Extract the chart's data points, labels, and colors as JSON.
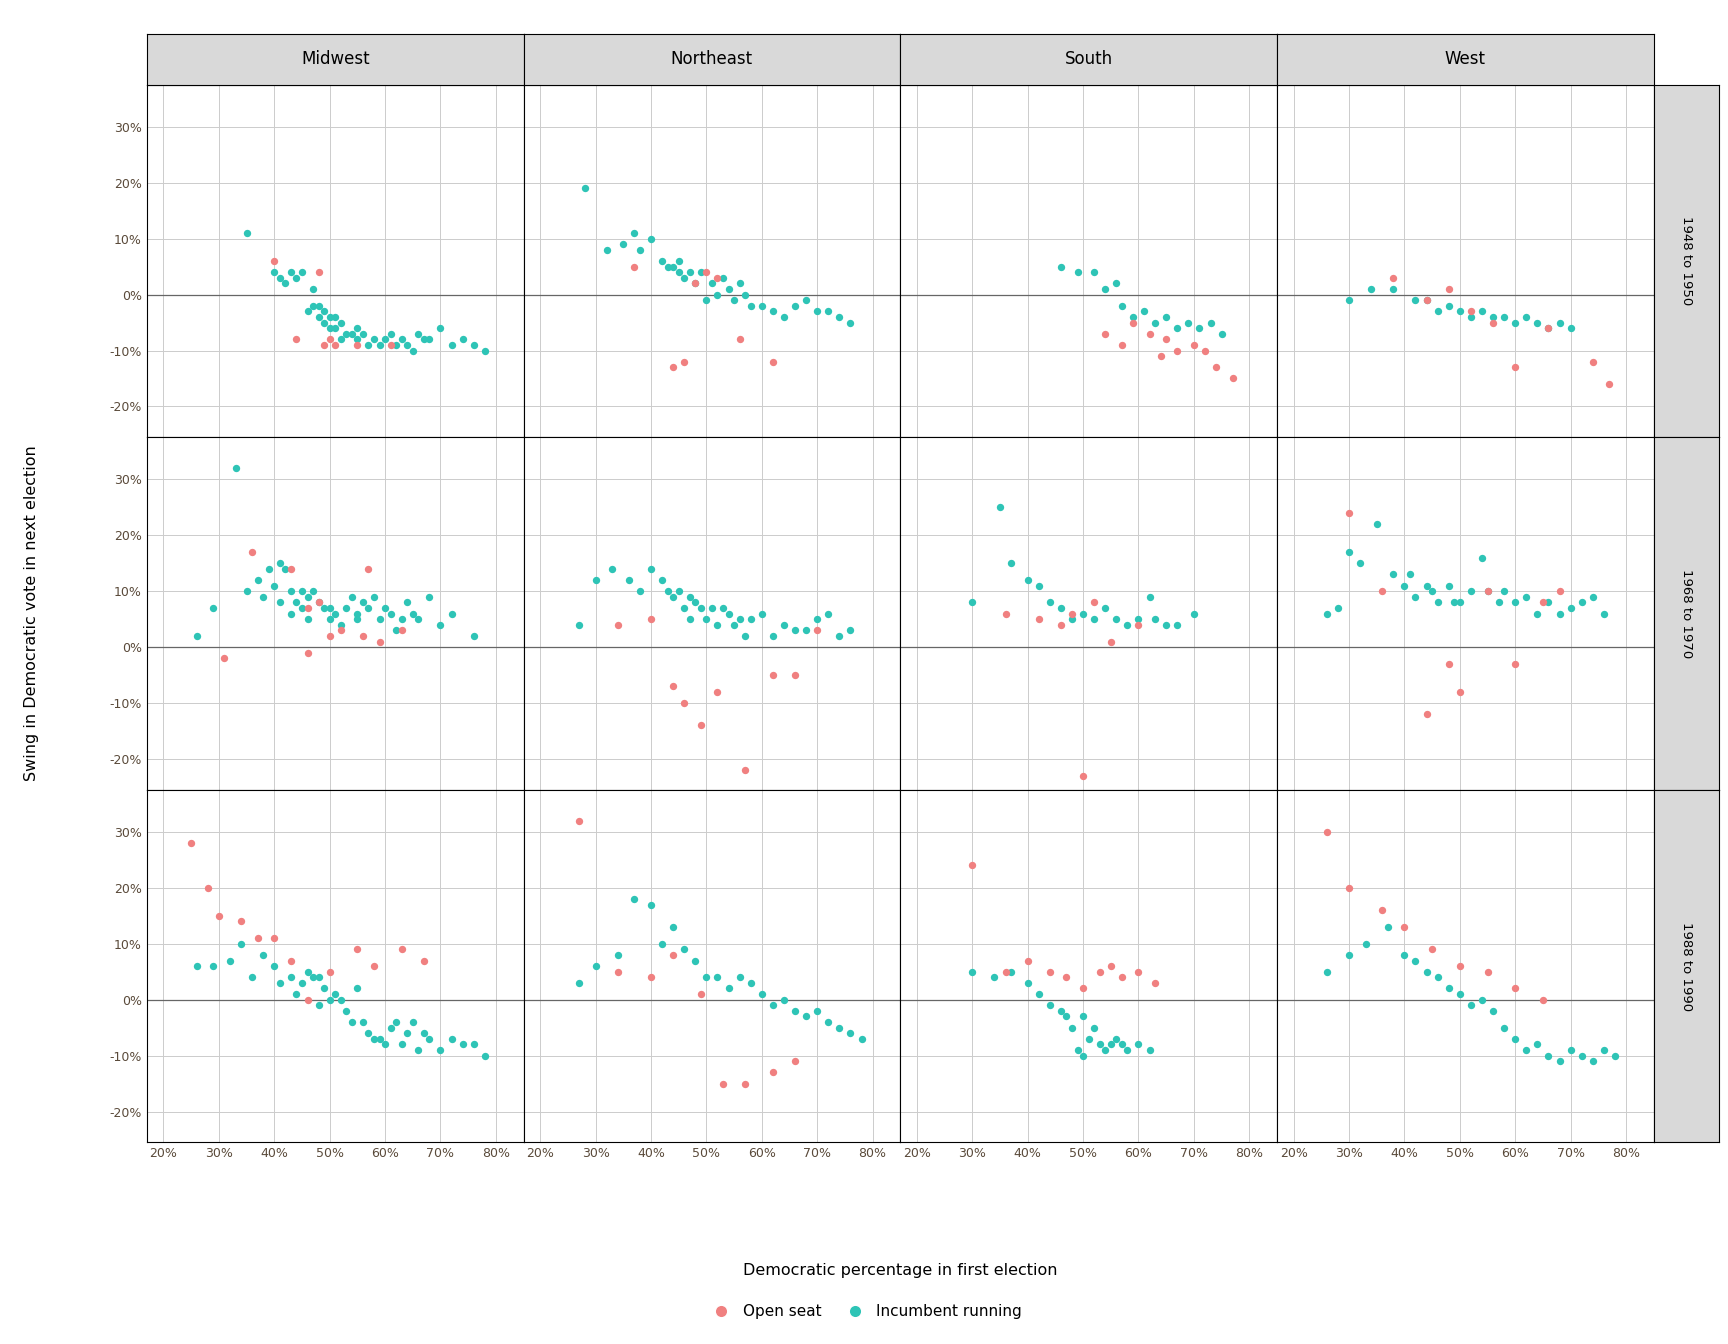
{
  "regions": [
    "Midwest",
    "Northeast",
    "South",
    "West"
  ],
  "periods": [
    "1948 to 1950",
    "1968 to 1970",
    "1988 to 1990"
  ],
  "open_color": "#F08080",
  "incumbent_color": "#2EC4B6",
  "bg_color": "#FFFFFF",
  "panel_bg": "#FFFFFF",
  "strip_bg": "#D9D9D9",
  "xlabel": "Democratic percentage in first election",
  "ylabel": "Swing in Democratic vote in next election",
  "xlim": [
    0.17,
    0.85
  ],
  "ylim": [
    -0.255,
    0.375
  ],
  "xticks": [
    0.2,
    0.3,
    0.4,
    0.5,
    0.6,
    0.7,
    0.8
  ],
  "yticks": [
    -0.2,
    -0.1,
    0.0,
    0.1,
    0.2,
    0.3
  ],
  "data": {
    "Midwest_1948": {
      "open_x": [
        0.4,
        0.44,
        0.48,
        0.49,
        0.5,
        0.51,
        0.55,
        0.61
      ],
      "open_y": [
        0.06,
        -0.08,
        0.04,
        -0.09,
        -0.08,
        -0.09,
        -0.09,
        -0.09
      ],
      "inc_x": [
        0.35,
        0.4,
        0.41,
        0.42,
        0.43,
        0.44,
        0.45,
        0.46,
        0.47,
        0.47,
        0.48,
        0.48,
        0.49,
        0.49,
        0.5,
        0.5,
        0.51,
        0.51,
        0.52,
        0.52,
        0.53,
        0.54,
        0.55,
        0.55,
        0.56,
        0.57,
        0.58,
        0.59,
        0.6,
        0.61,
        0.62,
        0.63,
        0.64,
        0.65,
        0.66,
        0.67,
        0.68,
        0.7,
        0.72,
        0.74,
        0.76,
        0.78
      ],
      "inc_y": [
        0.11,
        0.04,
        0.03,
        0.02,
        0.04,
        0.03,
        0.04,
        -0.03,
        -0.02,
        0.01,
        -0.04,
        -0.02,
        -0.05,
        -0.03,
        -0.06,
        -0.04,
        -0.06,
        -0.04,
        -0.08,
        -0.05,
        -0.07,
        -0.07,
        -0.06,
        -0.08,
        -0.07,
        -0.09,
        -0.08,
        -0.09,
        -0.08,
        -0.07,
        -0.09,
        -0.08,
        -0.09,
        -0.1,
        -0.07,
        -0.08,
        -0.08,
        -0.06,
        -0.09,
        -0.08,
        -0.09,
        -0.1
      ]
    },
    "Midwest_1968": {
      "open_x": [
        0.31,
        0.36,
        0.43,
        0.46,
        0.46,
        0.48,
        0.5,
        0.52,
        0.56,
        0.57,
        0.59,
        0.63
      ],
      "open_y": [
        -0.02,
        0.17,
        0.14,
        0.07,
        -0.01,
        0.08,
        0.02,
        0.03,
        0.02,
        0.14,
        0.01,
        0.03
      ],
      "inc_x": [
        0.26,
        0.29,
        0.33,
        0.35,
        0.37,
        0.38,
        0.39,
        0.4,
        0.41,
        0.41,
        0.42,
        0.43,
        0.43,
        0.44,
        0.45,
        0.45,
        0.46,
        0.46,
        0.47,
        0.48,
        0.49,
        0.5,
        0.5,
        0.51,
        0.52,
        0.53,
        0.54,
        0.55,
        0.55,
        0.56,
        0.57,
        0.58,
        0.59,
        0.6,
        0.61,
        0.62,
        0.63,
        0.64,
        0.65,
        0.66,
        0.68,
        0.7,
        0.72,
        0.76
      ],
      "inc_y": [
        0.02,
        0.07,
        0.32,
        0.1,
        0.12,
        0.09,
        0.14,
        0.11,
        0.08,
        0.15,
        0.14,
        0.1,
        0.06,
        0.08,
        0.1,
        0.07,
        0.09,
        0.05,
        0.1,
        0.08,
        0.07,
        0.07,
        0.05,
        0.06,
        0.04,
        0.07,
        0.09,
        0.06,
        0.05,
        0.08,
        0.07,
        0.09,
        0.05,
        0.07,
        0.06,
        0.03,
        0.05,
        0.08,
        0.06,
        0.05,
        0.09,
        0.04,
        0.06,
        0.02
      ]
    },
    "Midwest_1988": {
      "open_x": [
        0.25,
        0.28,
        0.3,
        0.34,
        0.37,
        0.4,
        0.43,
        0.46,
        0.5,
        0.55,
        0.58,
        0.63,
        0.67
      ],
      "open_y": [
        0.28,
        0.2,
        0.15,
        0.14,
        0.11,
        0.11,
        0.07,
        0.0,
        0.05,
        0.09,
        0.06,
        0.09,
        0.07
      ],
      "inc_x": [
        0.26,
        0.29,
        0.32,
        0.34,
        0.36,
        0.38,
        0.4,
        0.41,
        0.43,
        0.44,
        0.45,
        0.46,
        0.47,
        0.48,
        0.48,
        0.49,
        0.5,
        0.51,
        0.52,
        0.53,
        0.54,
        0.55,
        0.56,
        0.57,
        0.58,
        0.59,
        0.6,
        0.61,
        0.62,
        0.63,
        0.64,
        0.65,
        0.66,
        0.67,
        0.68,
        0.7,
        0.72,
        0.74,
        0.76,
        0.78
      ],
      "inc_y": [
        0.06,
        0.06,
        0.07,
        0.1,
        0.04,
        0.08,
        0.06,
        0.03,
        0.04,
        0.01,
        0.03,
        0.05,
        0.04,
        0.04,
        -0.01,
        0.02,
        0.0,
        0.01,
        -0.0,
        -0.02,
        -0.04,
        0.02,
        -0.04,
        -0.06,
        -0.07,
        -0.07,
        -0.08,
        -0.05,
        -0.04,
        -0.08,
        -0.06,
        -0.04,
        -0.09,
        -0.06,
        -0.07,
        -0.09,
        -0.07,
        -0.08,
        -0.08,
        -0.1
      ]
    },
    "Northeast_1948": {
      "open_x": [
        0.37,
        0.44,
        0.46,
        0.48,
        0.5,
        0.52,
        0.56,
        0.62
      ],
      "open_y": [
        0.05,
        -0.13,
        -0.12,
        0.02,
        0.04,
        0.03,
        -0.08,
        -0.12
      ],
      "inc_x": [
        0.28,
        0.32,
        0.35,
        0.37,
        0.38,
        0.4,
        0.42,
        0.43,
        0.44,
        0.45,
        0.45,
        0.46,
        0.47,
        0.48,
        0.49,
        0.5,
        0.51,
        0.52,
        0.53,
        0.54,
        0.55,
        0.56,
        0.57,
        0.58,
        0.6,
        0.62,
        0.64,
        0.66,
        0.68,
        0.7,
        0.72,
        0.74,
        0.76
      ],
      "inc_y": [
        0.19,
        0.08,
        0.09,
        0.11,
        0.08,
        0.1,
        0.06,
        0.05,
        0.05,
        0.06,
        0.04,
        0.03,
        0.04,
        0.02,
        0.04,
        -0.01,
        0.02,
        0.0,
        0.03,
        0.01,
        -0.01,
        0.02,
        0.0,
        -0.02,
        -0.02,
        -0.03,
        -0.04,
        -0.02,
        -0.01,
        -0.03,
        -0.03,
        -0.04,
        -0.05
      ]
    },
    "Northeast_1968": {
      "open_x": [
        0.34,
        0.4,
        0.44,
        0.46,
        0.49,
        0.52,
        0.57,
        0.62,
        0.66,
        0.7
      ],
      "open_y": [
        0.04,
        0.05,
        -0.07,
        -0.1,
        -0.14,
        -0.08,
        -0.22,
        -0.05,
        -0.05,
        0.03
      ],
      "inc_x": [
        0.27,
        0.3,
        0.33,
        0.36,
        0.38,
        0.4,
        0.42,
        0.43,
        0.44,
        0.45,
        0.46,
        0.47,
        0.47,
        0.48,
        0.49,
        0.5,
        0.51,
        0.52,
        0.53,
        0.54,
        0.55,
        0.56,
        0.57,
        0.58,
        0.6,
        0.62,
        0.64,
        0.66,
        0.68,
        0.7,
        0.72,
        0.74,
        0.76
      ],
      "inc_y": [
        0.04,
        0.12,
        0.14,
        0.12,
        0.1,
        0.14,
        0.12,
        0.1,
        0.09,
        0.1,
        0.07,
        0.09,
        0.05,
        0.08,
        0.07,
        0.05,
        0.07,
        0.04,
        0.07,
        0.06,
        0.04,
        0.05,
        0.02,
        0.05,
        0.06,
        0.02,
        0.04,
        0.03,
        0.03,
        0.05,
        0.06,
        0.02,
        0.03
      ]
    },
    "Northeast_1988": {
      "open_x": [
        0.27,
        0.34,
        0.4,
        0.44,
        0.49,
        0.53,
        0.57,
        0.62,
        0.66
      ],
      "open_y": [
        0.32,
        0.05,
        0.04,
        0.08,
        0.01,
        -0.15,
        -0.15,
        -0.13,
        -0.11
      ],
      "inc_x": [
        0.27,
        0.3,
        0.34,
        0.37,
        0.4,
        0.42,
        0.44,
        0.46,
        0.48,
        0.5,
        0.52,
        0.54,
        0.56,
        0.58,
        0.6,
        0.62,
        0.64,
        0.66,
        0.68,
        0.7,
        0.72,
        0.74,
        0.76,
        0.78
      ],
      "inc_y": [
        0.03,
        0.06,
        0.08,
        0.18,
        0.17,
        0.1,
        0.13,
        0.09,
        0.07,
        0.04,
        0.04,
        0.02,
        0.04,
        0.03,
        0.01,
        -0.01,
        0.0,
        -0.02,
        -0.03,
        -0.02,
        -0.04,
        -0.05,
        -0.06,
        -0.07
      ]
    },
    "South_1948": {
      "open_x": [
        0.54,
        0.57,
        0.59,
        0.62,
        0.64,
        0.65,
        0.67,
        0.7,
        0.72,
        0.74,
        0.77
      ],
      "open_y": [
        -0.07,
        -0.09,
        -0.05,
        -0.07,
        -0.11,
        -0.08,
        -0.1,
        -0.09,
        -0.1,
        -0.13,
        -0.15
      ],
      "inc_x": [
        0.46,
        0.49,
        0.52,
        0.54,
        0.56,
        0.57,
        0.59,
        0.61,
        0.63,
        0.65,
        0.67,
        0.69,
        0.71,
        0.73,
        0.75
      ],
      "inc_y": [
        0.05,
        0.04,
        0.04,
        0.01,
        0.02,
        -0.02,
        -0.04,
        -0.03,
        -0.05,
        -0.04,
        -0.06,
        -0.05,
        -0.06,
        -0.05,
        -0.07
      ]
    },
    "South_1968": {
      "open_x": [
        0.36,
        0.42,
        0.46,
        0.48,
        0.5,
        0.52,
        0.55,
        0.6
      ],
      "open_y": [
        0.06,
        0.05,
        0.04,
        0.06,
        -0.23,
        0.08,
        0.01,
        0.04
      ],
      "inc_x": [
        0.3,
        0.35,
        0.37,
        0.4,
        0.42,
        0.44,
        0.46,
        0.48,
        0.5,
        0.52,
        0.54,
        0.56,
        0.58,
        0.6,
        0.62,
        0.63,
        0.65,
        0.67,
        0.7
      ],
      "inc_y": [
        0.08,
        0.25,
        0.15,
        0.12,
        0.11,
        0.08,
        0.07,
        0.05,
        0.06,
        0.05,
        0.07,
        0.05,
        0.04,
        0.05,
        0.09,
        0.05,
        0.04,
        0.04,
        0.06
      ]
    },
    "South_1988": {
      "open_x": [
        0.3,
        0.36,
        0.4,
        0.44,
        0.47,
        0.5,
        0.53,
        0.55,
        0.57,
        0.6,
        0.63
      ],
      "open_y": [
        0.24,
        0.05,
        0.07,
        0.05,
        0.04,
        0.02,
        0.05,
        0.06,
        0.04,
        0.05,
        0.03
      ],
      "inc_x": [
        0.3,
        0.34,
        0.37,
        0.4,
        0.42,
        0.44,
        0.46,
        0.47,
        0.48,
        0.49,
        0.5,
        0.5,
        0.51,
        0.52,
        0.53,
        0.54,
        0.55,
        0.56,
        0.57,
        0.58,
        0.6,
        0.62
      ],
      "inc_y": [
        0.05,
        0.04,
        0.05,
        0.03,
        0.01,
        -0.01,
        -0.02,
        -0.03,
        -0.05,
        -0.09,
        -0.1,
        -0.03,
        -0.07,
        -0.05,
        -0.08,
        -0.09,
        -0.08,
        -0.07,
        -0.08,
        -0.09,
        -0.08,
        -0.09
      ]
    },
    "West_1948": {
      "open_x": [
        0.38,
        0.44,
        0.48,
        0.52,
        0.56,
        0.6,
        0.66,
        0.74,
        0.77
      ],
      "open_y": [
        0.03,
        -0.01,
        0.01,
        -0.03,
        -0.05,
        -0.13,
        -0.06,
        -0.12,
        -0.16
      ],
      "inc_x": [
        0.3,
        0.34,
        0.38,
        0.42,
        0.44,
        0.46,
        0.48,
        0.5,
        0.52,
        0.54,
        0.56,
        0.58,
        0.6,
        0.62,
        0.64,
        0.66,
        0.68,
        0.7
      ],
      "inc_y": [
        -0.01,
        0.01,
        0.01,
        -0.01,
        -0.01,
        -0.03,
        -0.02,
        -0.03,
        -0.04,
        -0.03,
        -0.04,
        -0.04,
        -0.05,
        -0.04,
        -0.05,
        -0.06,
        -0.05,
        -0.06
      ]
    },
    "West_1968": {
      "open_x": [
        0.3,
        0.36,
        0.44,
        0.48,
        0.5,
        0.55,
        0.6,
        0.65,
        0.68
      ],
      "open_y": [
        0.24,
        0.1,
        -0.12,
        -0.03,
        -0.08,
        0.1,
        -0.03,
        0.08,
        0.1
      ],
      "inc_x": [
        0.26,
        0.28,
        0.3,
        0.32,
        0.35,
        0.38,
        0.4,
        0.41,
        0.42,
        0.44,
        0.45,
        0.46,
        0.48,
        0.49,
        0.5,
        0.52,
        0.54,
        0.55,
        0.57,
        0.58,
        0.6,
        0.62,
        0.64,
        0.66,
        0.68,
        0.7,
        0.72,
        0.74,
        0.76
      ],
      "inc_y": [
        0.06,
        0.07,
        0.17,
        0.15,
        0.22,
        0.13,
        0.11,
        0.13,
        0.09,
        0.11,
        0.1,
        0.08,
        0.11,
        0.08,
        0.08,
        0.1,
        0.16,
        0.1,
        0.08,
        0.1,
        0.08,
        0.09,
        0.06,
        0.08,
        0.06,
        0.07,
        0.08,
        0.09,
        0.06
      ]
    },
    "West_1988": {
      "open_x": [
        0.26,
        0.3,
        0.36,
        0.4,
        0.45,
        0.5,
        0.55,
        0.6,
        0.65
      ],
      "open_y": [
        0.3,
        0.2,
        0.16,
        0.13,
        0.09,
        0.06,
        0.05,
        0.02,
        0.0
      ],
      "inc_x": [
        0.26,
        0.3,
        0.33,
        0.37,
        0.4,
        0.42,
        0.44,
        0.46,
        0.48,
        0.5,
        0.52,
        0.54,
        0.56,
        0.58,
        0.6,
        0.62,
        0.64,
        0.66,
        0.68,
        0.7,
        0.72,
        0.74,
        0.76,
        0.78
      ],
      "inc_y": [
        0.05,
        0.08,
        0.1,
        0.13,
        0.08,
        0.07,
        0.05,
        0.04,
        0.02,
        0.01,
        -0.01,
        0.0,
        -0.02,
        -0.05,
        -0.07,
        -0.09,
        -0.08,
        -0.1,
        -0.11,
        -0.09,
        -0.1,
        -0.11,
        -0.09,
        -0.1
      ]
    }
  }
}
